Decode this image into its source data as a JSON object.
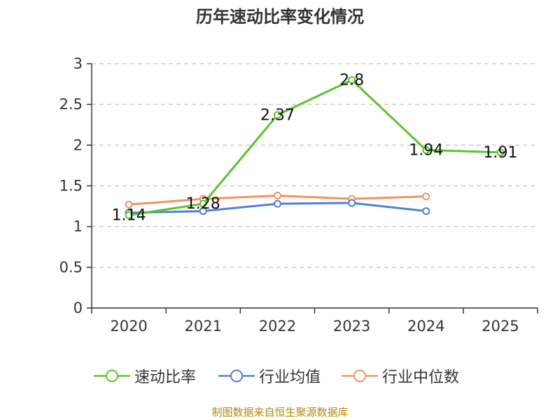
{
  "chart_data": {
    "type": "line",
    "title": "历年速动比率变化情况",
    "categories": [
      "2020",
      "2021",
      "2022",
      "2023",
      "2024",
      "2025"
    ],
    "ylim": [
      0,
      3
    ],
    "yticks": [
      "0",
      "0.5",
      "1",
      "1.5",
      "2",
      "2.5",
      "3"
    ],
    "grid": true,
    "legend_position": "bottom",
    "series": [
      {
        "name": "速动比率",
        "color": "#5bc42e",
        "values": [
          1.14,
          1.28,
          2.37,
          2.8,
          1.94,
          1.91
        ],
        "labels": [
          "1.14",
          "1.28",
          "2.37",
          "2.8",
          "1.94",
          "1.91"
        ]
      },
      {
        "name": "行业均值",
        "color": "#4f7fdb",
        "values": [
          1.17,
          1.19,
          1.28,
          1.29,
          1.19,
          null
        ]
      },
      {
        "name": "行业中位数",
        "color": "#f5925e",
        "values": [
          1.27,
          1.34,
          1.38,
          1.34,
          1.37,
          null
        ]
      }
    ]
  },
  "source": "制图数据来自恒生聚源数据库"
}
